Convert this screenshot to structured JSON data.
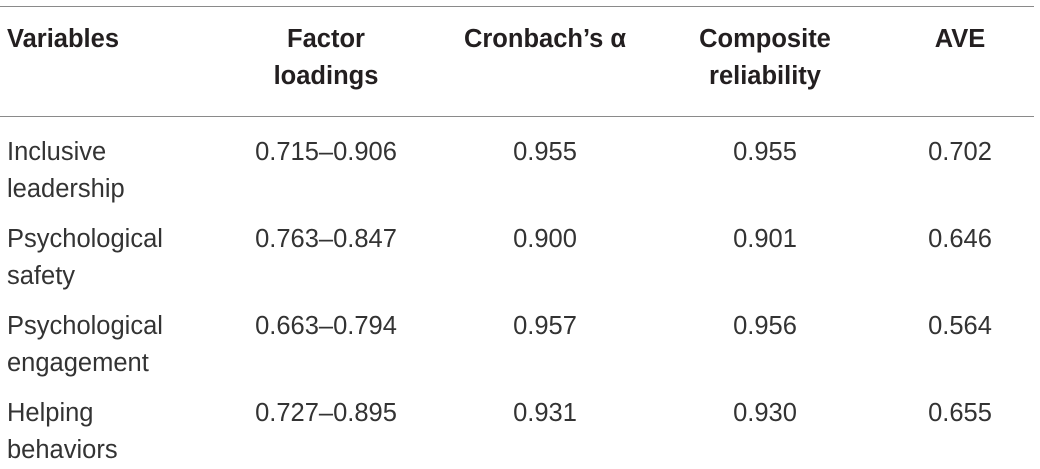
{
  "table": {
    "headers": {
      "variables": "Variables",
      "factor_loadings": [
        "Factor",
        "loadings"
      ],
      "cronbach": "Cronbach’s α",
      "composite_reliability": [
        "Composite",
        "reliability"
      ],
      "ave": "AVE"
    },
    "rows": [
      {
        "variable": [
          "Inclusive",
          "leadership"
        ],
        "factor_loadings": "0.715–0.906",
        "cronbach": "0.955",
        "composite_reliability": "0.955",
        "ave": "0.702"
      },
      {
        "variable": [
          "Psychological",
          "safety"
        ],
        "factor_loadings": "0.763–0.847",
        "cronbach": "0.900",
        "composite_reliability": "0.901",
        "ave": "0.646"
      },
      {
        "variable": [
          "Psychological",
          "engagement"
        ],
        "factor_loadings": "0.663–0.794",
        "cronbach": "0.957",
        "composite_reliability": "0.956",
        "ave": "0.564"
      },
      {
        "variable": [
          "Helping",
          "behaviors"
        ],
        "factor_loadings": "0.727–0.895",
        "cronbach": "0.931",
        "composite_reliability": "0.930",
        "ave": "0.655"
      }
    ]
  }
}
